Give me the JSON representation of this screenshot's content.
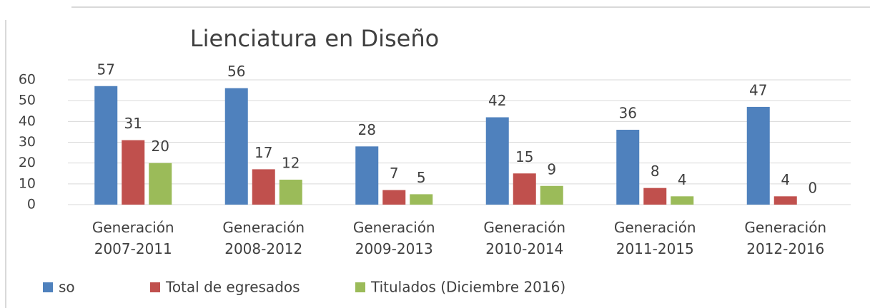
{
  "chart_data": {
    "type": "bar",
    "title": "Lienciatura en Diseño",
    "categories": [
      "Generación 2007-2011",
      "Generación 2008-2012",
      "Generación 2009-2013",
      "Generación 2010-2014",
      "Generación 2011-2015",
      "Generación 2012-2016"
    ],
    "series": [
      {
        "name": "so",
        "color": "#4f81bd",
        "values": [
          57,
          56,
          28,
          42,
          36,
          47
        ]
      },
      {
        "name": "Total de egresados",
        "color": "#c0504d",
        "values": [
          31,
          17,
          7,
          15,
          8,
          4
        ]
      },
      {
        "name": "Titulados (Diciembre 2016)",
        "color": "#9bbb59",
        "values": [
          20,
          12,
          5,
          9,
          4,
          0
        ]
      }
    ],
    "ylim": [
      0,
      60
    ],
    "yticks": [
      0,
      10,
      20,
      30,
      40,
      50,
      60
    ],
    "grid": true,
    "legend": "bottom"
  }
}
